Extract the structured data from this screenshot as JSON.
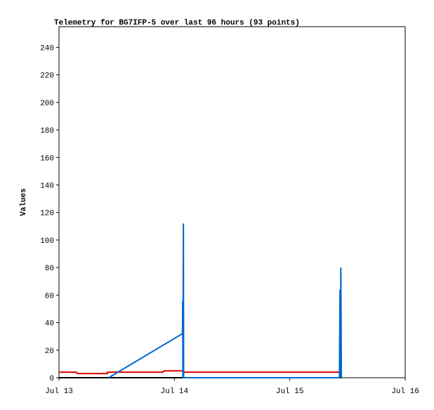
{
  "chart_data": {
    "type": "line",
    "title": "Telemetry for BG7IFP-5 over last 96 hours (93 points)",
    "ylabel": "Values",
    "xlim": [
      0,
      3
    ],
    "xticks": [
      {
        "value": 0,
        "label": "Jul 13"
      },
      {
        "value": 1,
        "label": "Jul 14"
      },
      {
        "value": 2,
        "label": "Jul 15"
      },
      {
        "value": 3,
        "label": "Jul 16"
      }
    ],
    "ylim": [
      0,
      255
    ],
    "yticks": [
      0,
      20,
      40,
      60,
      80,
      100,
      120,
      140,
      160,
      180,
      200,
      220,
      240
    ],
    "series": [
      {
        "color": "#000000",
        "x": [
          0,
          2.45
        ],
        "values": [
          0,
          0
        ]
      },
      {
        "color": "#dd0000",
        "x": [
          0,
          0.15,
          0.16,
          0.42,
          0.42,
          0.9,
          0.91,
          1.07,
          1.08,
          2.45
        ],
        "values": [
          4,
          4,
          3,
          3,
          4,
          4,
          5,
          5,
          4,
          4
        ]
      },
      {
        "color": "#0066cc",
        "x": [
          0.43,
          1.07,
          1.072,
          1.074,
          1.078,
          1.08,
          2.43,
          2.435,
          2.438,
          2.442,
          2.447
        ],
        "values": [
          0,
          32,
          56,
          0,
          112,
          0,
          0,
          64,
          0,
          80,
          0
        ]
      }
    ]
  }
}
